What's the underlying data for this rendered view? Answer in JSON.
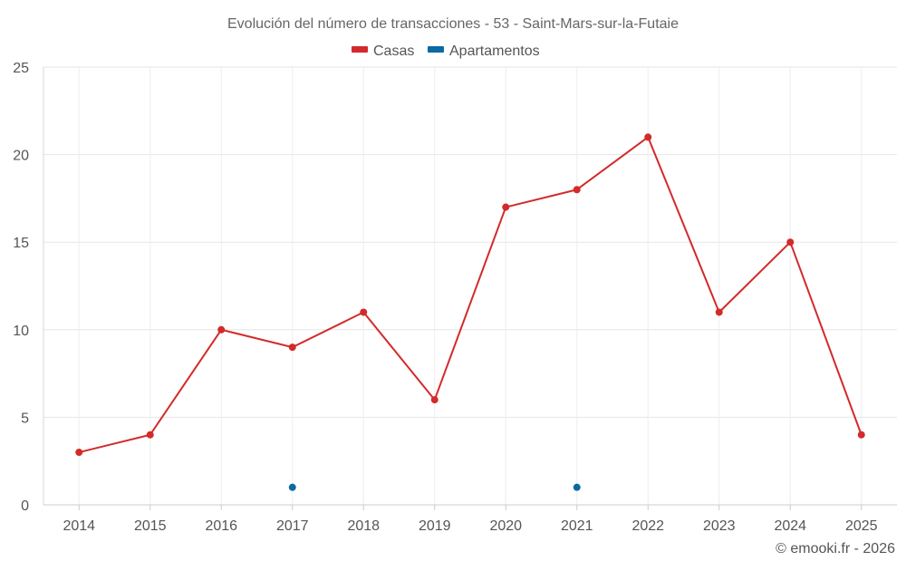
{
  "chart_data": {
    "type": "line",
    "title": "Evolución del número de transacciones - 53 - Saint-Mars-sur-la-Futaie",
    "xlabel": "",
    "ylabel": "",
    "categories": [
      "2014",
      "2015",
      "2016",
      "2017",
      "2018",
      "2019",
      "2020",
      "2021",
      "2022",
      "2023",
      "2024",
      "2025"
    ],
    "y_ticks": [
      "0",
      "5",
      "10",
      "15",
      "20",
      "25"
    ],
    "ylim": [
      0,
      25
    ],
    "grid": true,
    "legend_position": "top-center",
    "series": [
      {
        "name": "Casas",
        "color": "#d32a2a",
        "values": [
          3,
          4,
          10,
          9,
          11,
          6,
          17,
          18,
          21,
          11,
          15,
          4
        ]
      },
      {
        "name": "Apartamentos",
        "color": "#0a6aa1",
        "values": [
          null,
          null,
          null,
          1,
          null,
          null,
          null,
          1,
          null,
          null,
          null,
          null
        ]
      }
    ],
    "credit": "© emooki.fr - 2026"
  }
}
